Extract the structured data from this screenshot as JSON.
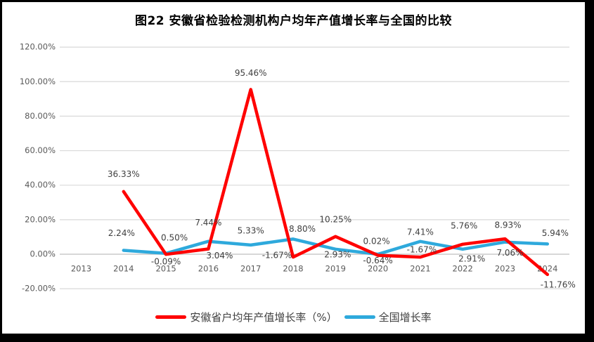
{
  "title": "图22 安徽省检验检测机构户均年产值增长率与全国的比较",
  "chart_data": {
    "type": "line",
    "x": [
      "2013",
      "2014",
      "2015",
      "2016",
      "2017",
      "2018",
      "2019",
      "2020",
      "2021",
      "2022",
      "2023",
      "2024"
    ],
    "series": [
      {
        "name": "安徽省户均年产值增长率（%）",
        "color": "#FF0000",
        "start_index": 1,
        "values": [
          36.33,
          -0.09,
          3.04,
          95.46,
          -1.67,
          10.25,
          -0.64,
          -1.67,
          5.76,
          8.93,
          -11.76
        ]
      },
      {
        "name": "全国增长率",
        "color": "#2EA9DC",
        "start_index": 1,
        "values": [
          2.24,
          0.5,
          7.44,
          5.33,
          8.8,
          2.93,
          0.02,
          7.41,
          2.91,
          7.06,
          5.94
        ]
      }
    ],
    "y_ticks": [
      {
        "label": "120.00%",
        "value": 120
      },
      {
        "label": "100.00%",
        "value": 100
      },
      {
        "label": "80.00%",
        "value": 80
      },
      {
        "label": "60.00%",
        "value": 60
      },
      {
        "label": "40.00%",
        "value": 40
      },
      {
        "label": "20.00%",
        "value": 20
      },
      {
        "label": "0.00%",
        "value": 0
      },
      {
        "label": "-20.00%",
        "value": -20
      }
    ],
    "ylim": [
      -20,
      120
    ],
    "grid": true,
    "data_labels": true,
    "label_format": "0.00%",
    "legend_position": "bottom",
    "xlabel": "",
    "ylabel": ""
  },
  "style_colors": {
    "grid": "#D9D9D9",
    "zero_line": "#BFBFBF",
    "axis_text": "#595959",
    "data_label_text": "#404040",
    "title_text": "#000000",
    "frame": "#000000"
  }
}
